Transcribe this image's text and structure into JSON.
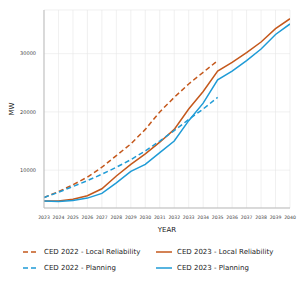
{
  "chart_data": {
    "type": "line",
    "x_label": "YEAR",
    "y_label": "MW",
    "x": [
      2023,
      2024,
      2025,
      2026,
      2027,
      2028,
      2029,
      2030,
      2031,
      2032,
      2033,
      2034,
      2035,
      2036,
      2037,
      2038,
      2039,
      2040
    ],
    "xlim": [
      2023,
      2040
    ],
    "xticks": [
      2023,
      2024,
      2025,
      2026,
      2027,
      2028,
      2029,
      2030,
      2031,
      2032,
      2033,
      2034,
      2035,
      2036,
      2037,
      2038,
      2039,
      2040
    ],
    "ylim": [
      3500,
      37500
    ],
    "yticks": [
      10000,
      20000,
      30000
    ],
    "grid": true,
    "legend": "bottom",
    "series": [
      {
        "name": "CED 2022 - Local Reliability",
        "color": "#c4581c",
        "line_style": "dashed",
        "values": [
          5300,
          6300,
          7500,
          8800,
          10500,
          12500,
          14500,
          17000,
          20000,
          22500,
          24800,
          26800,
          28800,
          null,
          null,
          null,
          null,
          null
        ]
      },
      {
        "name": "CED 2023 - Local Reliability",
        "color": "#c4581c",
        "line_style": "solid",
        "values": [
          4700,
          4700,
          5000,
          5600,
          6800,
          9000,
          11000,
          12800,
          14800,
          17000,
          20500,
          23500,
          27000,
          28500,
          30200,
          32000,
          34300,
          36000
        ]
      },
      {
        "name": "CED 2022 - Planning",
        "color": "#1f9bd6",
        "line_style": "dashed",
        "values": [
          5300,
          6200,
          7200,
          8200,
          9300,
          10500,
          11800,
          13300,
          15000,
          16800,
          18700,
          20500,
          22500,
          null,
          null,
          null,
          null,
          null
        ]
      },
      {
        "name": "CED 2023 - Planning",
        "color": "#1f9bd6",
        "line_style": "solid",
        "values": [
          4700,
          4600,
          4800,
          5200,
          6000,
          7800,
          9800,
          11000,
          13000,
          15000,
          18500,
          21500,
          25500,
          27000,
          28800,
          30800,
          33300,
          35100
        ]
      }
    ]
  }
}
